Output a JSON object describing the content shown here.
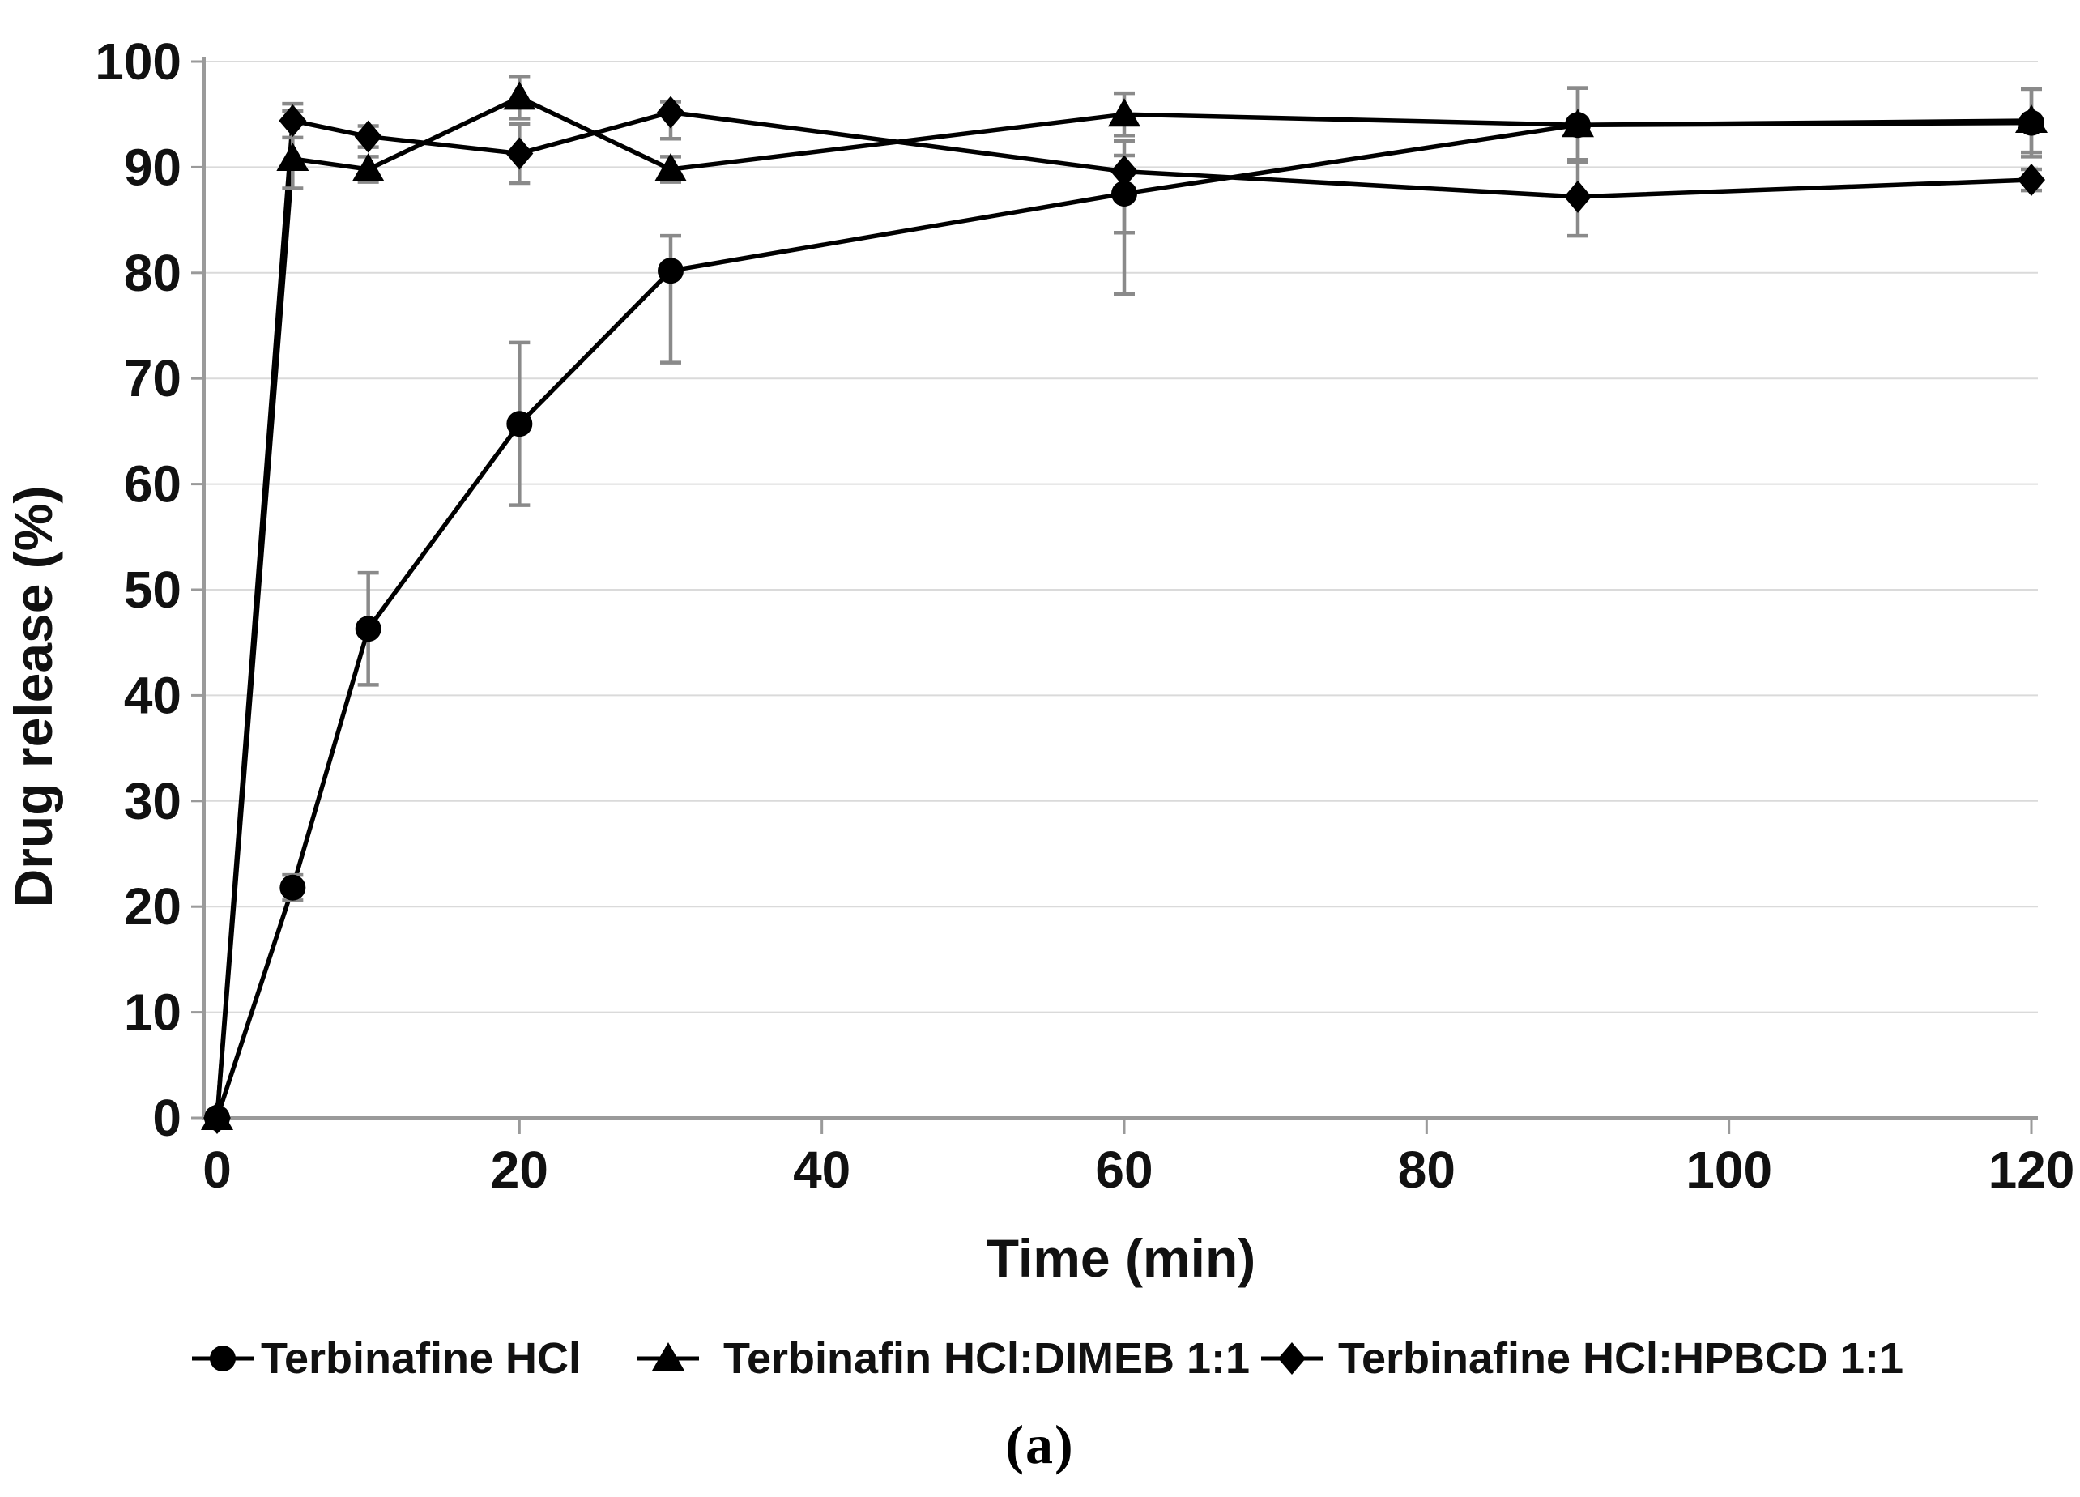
{
  "figure": {
    "caption": "(a)",
    "aria_label": "Line chart of drug release percentage over time for Terbinafine HCl alone and with cyclodextrin complexes"
  },
  "chart_data": {
    "type": "line",
    "title": "",
    "xlabel": "Time (min)",
    "ylabel": "Drug release (%)",
    "x": [
      0,
      5,
      10,
      20,
      30,
      60,
      90,
      120
    ],
    "xlim": [
      0,
      120
    ],
    "ylim": [
      0,
      100
    ],
    "x_ticks": [
      0,
      20,
      40,
      60,
      80,
      100,
      120
    ],
    "y_ticks": [
      0,
      10,
      20,
      30,
      40,
      50,
      60,
      70,
      80,
      90,
      100
    ],
    "grid": "horizontal",
    "legend_position": "bottom",
    "colors": {
      "series": "#000000",
      "error_bar": "#8a8a8a",
      "gridline": "#dadada",
      "axis": "#9a9a9a",
      "text": "#111111"
    },
    "series": [
      {
        "name": "Terbinafine HCl",
        "marker": "circle",
        "values": [
          0,
          21.8,
          46.3,
          65.7,
          80.2,
          87.5,
          94.0,
          94.2
        ],
        "err_up": [
          0,
          1.2,
          5.3,
          7.7,
          3.3,
          5.0,
          3.5,
          3.2
        ],
        "err_dn": [
          0,
          1.2,
          5.3,
          7.7,
          8.7,
          9.5,
          3.5,
          3.2
        ]
      },
      {
        "name": "Terbinafin HCl:DIMEB 1:1",
        "marker": "triangle",
        "values": [
          0,
          90.8,
          89.8,
          96.6,
          89.8,
          95.0,
          94.0,
          94.4
        ],
        "err_up": [
          0,
          4.5,
          1.2,
          2.0,
          1.2,
          2.0,
          3.5,
          3.0
        ],
        "err_dn": [
          0,
          2.8,
          1.2,
          2.0,
          1.2,
          2.0,
          3.5,
          3.0
        ]
      },
      {
        "name": "Terbinafine HCl:HPBCD 1:1",
        "marker": "diamond",
        "values": [
          0,
          94.4,
          92.9,
          91.3,
          95.2,
          89.6,
          87.2,
          88.8
        ],
        "err_up": [
          0,
          1.6,
          1.0,
          2.8,
          1.0,
          1.5,
          3.5,
          1.0
        ],
        "err_dn": [
          0,
          1.6,
          1.0,
          2.8,
          2.5,
          5.8,
          3.7,
          1.0
        ]
      }
    ],
    "legend_items": [
      {
        "label": "Terbinafine HCl",
        "marker": "circle",
        "marker_x": 275,
        "text_x": 322
      },
      {
        "label": "Terbinafin HCl:DIMEB 1:1",
        "marker": "triangle",
        "marker_x": 825,
        "text_x": 893
      },
      {
        "label": "Terbinafine HCl:HPBCD 1:1",
        "marker": "diamond",
        "marker_x": 1595,
        "text_x": 1652
      }
    ]
  }
}
